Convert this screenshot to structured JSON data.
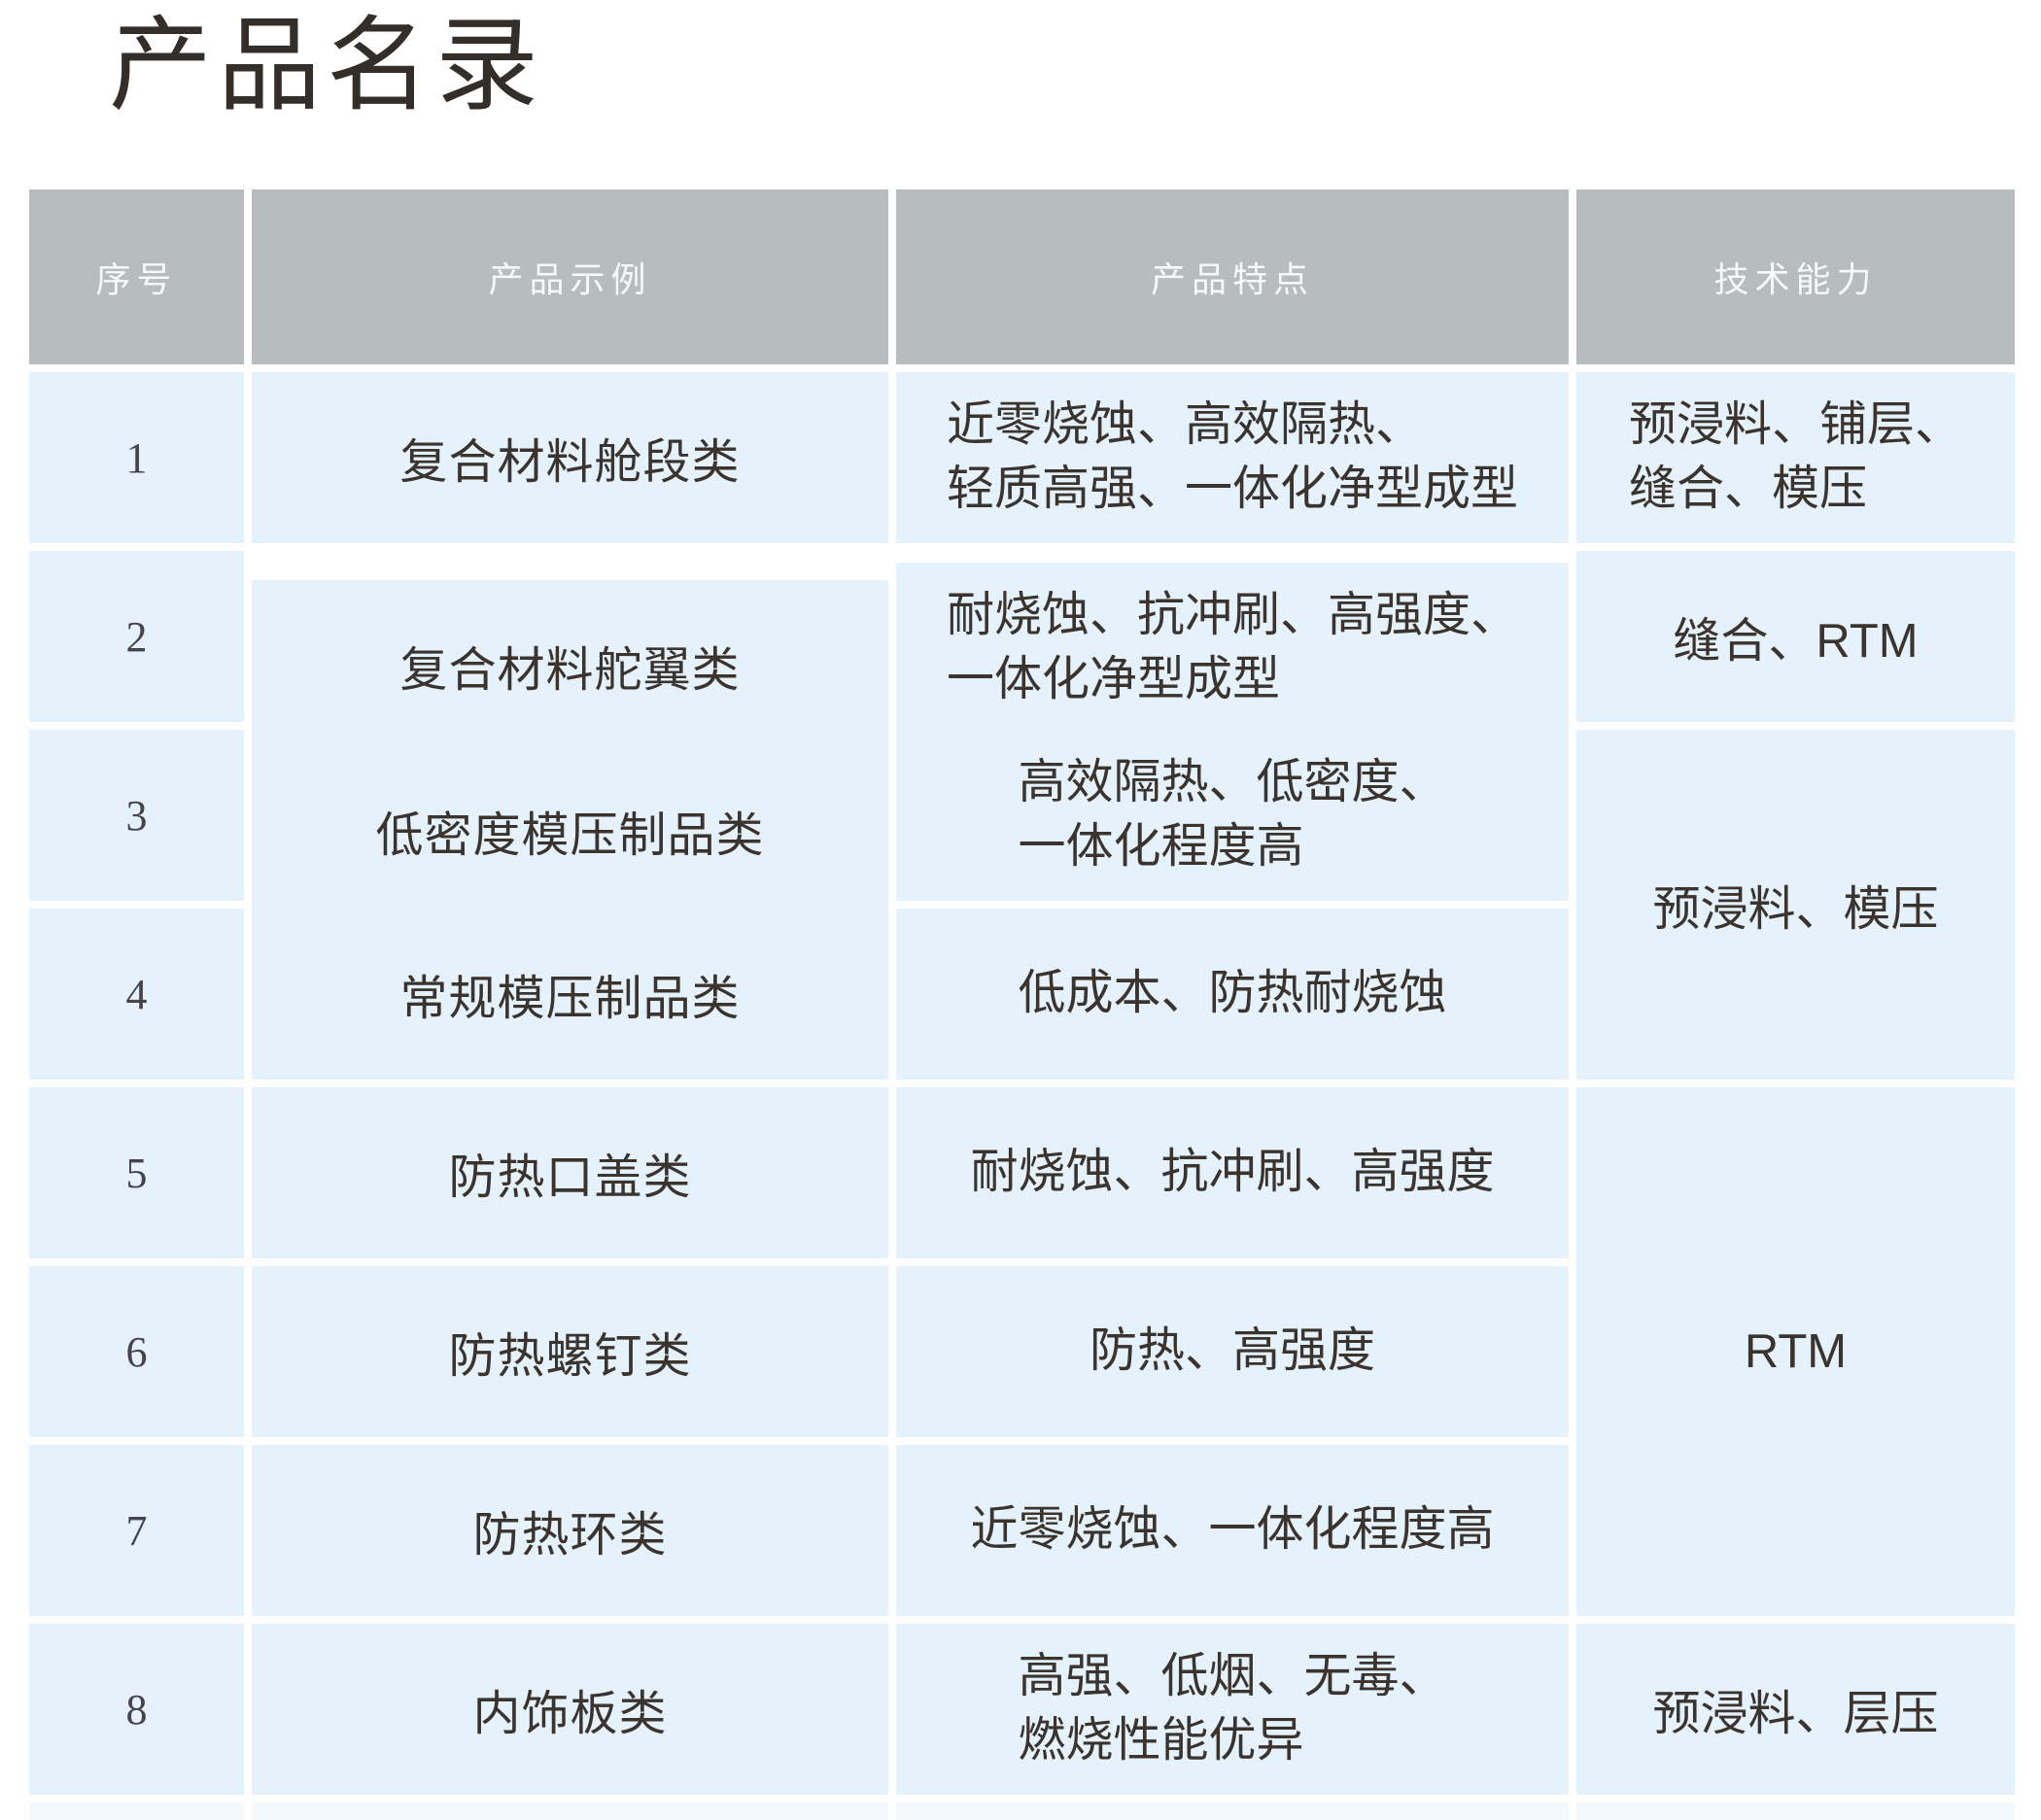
{
  "page": {
    "title": "产品名录"
  },
  "table": {
    "headers": [
      "序号",
      "产品示例",
      "产品特点",
      "技术能力"
    ],
    "rows": [
      {
        "no": "1",
        "product": "复合材料舱段类",
        "features": [
          "近零烧蚀、高效隔热、",
          "轻质高强、一体化净型成型"
        ],
        "capability": [
          "预浸料、铺层、",
          "缝合、模压"
        ]
      },
      {
        "no": "2",
        "product": "复合材料舵翼类",
        "features": [
          "耐烧蚀、抗冲刷、高强度、",
          "一体化净型成型"
        ],
        "capability": [
          "缝合、RTM"
        ]
      },
      {
        "no": "3",
        "product": "低密度模压制品类",
        "features": [
          "高效隔热、低密度、",
          "一体化程度高"
        ],
        "capability": [
          "预浸料、模压"
        ],
        "capability_rowspan": 2
      },
      {
        "no": "4",
        "product": "常规模压制品类",
        "features": [
          "低成本、防热耐烧蚀"
        ]
      },
      {
        "no": "5",
        "product": "防热口盖类",
        "features": [
          "耐烧蚀、抗冲刷、高强度"
        ],
        "capability": [
          "RTM"
        ],
        "capability_rowspan": 3
      },
      {
        "no": "6",
        "product": "防热螺钉类",
        "features": [
          "防热、高强度"
        ]
      },
      {
        "no": "7",
        "product": "防热环类",
        "features": [
          "近零烧蚀、一体化程度高"
        ]
      },
      {
        "no": "8",
        "product": "内饰板类",
        "features": [
          "高强、低烟、无毒、",
          "燃烧性能优异"
        ],
        "capability": [
          "预浸料、层压"
        ]
      }
    ],
    "colors": {
      "header_bg": "#b7bcbf",
      "header_text": "#f7f8f9",
      "row_bg": "#e5f1fb",
      "body_text": "#3a332e",
      "title_text": "#332e29"
    }
  }
}
